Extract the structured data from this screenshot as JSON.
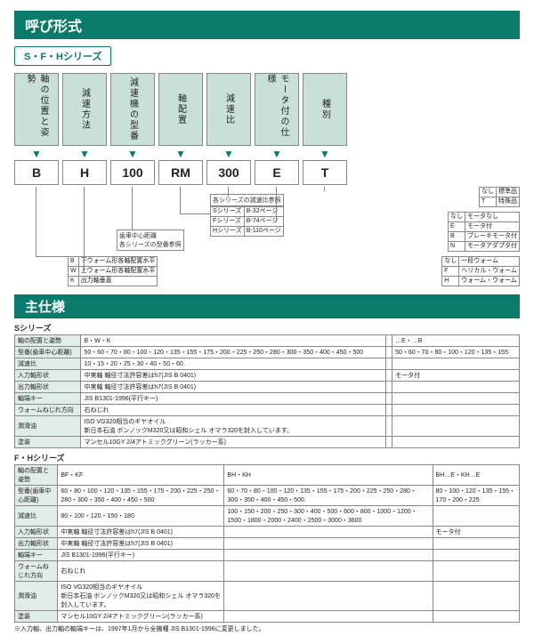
{
  "colors": {
    "accent": "#0a7a6a",
    "header_bg": "#c8e0d8",
    "border": "#888888",
    "page_bg": "#ffffff"
  },
  "title1": "呼び形式",
  "series_badge": "S・F・Hシリーズ",
  "columns": [
    {
      "header": "軸の位置と姿勢",
      "code": "B"
    },
    {
      "header": "減速方法",
      "code": "H"
    },
    {
      "header": "減速機の型番",
      "code": "100"
    },
    {
      "header": "軸配置",
      "code": "RM"
    },
    {
      "header": "減速比",
      "code": "300"
    },
    {
      "header": "モータ付の仕様",
      "code": "E"
    },
    {
      "header": "種別",
      "code": "T"
    }
  ],
  "legend_type": {
    "rows": [
      [
        "なし",
        "標準品"
      ],
      [
        "T",
        "特殊品"
      ]
    ]
  },
  "legend_motor": {
    "rows": [
      [
        "なし",
        "モータなし"
      ],
      [
        "E",
        "モータ付"
      ],
      [
        "B",
        "ブレーキモータ付"
      ],
      [
        "N",
        "モータアダプタ付"
      ]
    ]
  },
  "legend_worm": {
    "rows": [
      [
        "なし",
        "一段ウォーム"
      ],
      [
        "F",
        "ヘリカル・ウォーム"
      ],
      [
        "H",
        "ウォーム・ウォーム"
      ]
    ]
  },
  "legend_series": {
    "rows": [
      [
        "Sシリーズ",
        "B-32ページ"
      ],
      [
        "Fシリーズ",
        "B-74ページ"
      ],
      [
        "Hシリーズ",
        "B-110ページ"
      ]
    ]
  },
  "note_ratio": "各シリーズの減速比参照",
  "note_model": "歯車中心距離\n各シリーズの型番参照",
  "legend_pos": {
    "rows": [
      [
        "B",
        "下ウォーム形各軸配置水平"
      ],
      [
        "W",
        "上ウォーム形各軸配置水平"
      ],
      [
        "K",
        "出力軸垂直"
      ]
    ]
  },
  "title2": "主仕様",
  "s_label": "Sシリーズ",
  "s_table": {
    "rows": [
      [
        "軸の配置と姿勢",
        "B・W・K",
        "",
        "…E・…B"
      ],
      [
        "型番(歯車中心距離)",
        "50・60・70・80・100・120・135・155・175・200・225・250・280・300・350・400・450・500",
        "",
        "50・60・70・80・100・120・135・155"
      ],
      [
        "減速比",
        "10・15・20・25・30・40・50・60",
        "",
        ""
      ],
      [
        "入力軸形状",
        "中実軸 軸径寸法許容差はh7(JIS B 0401)",
        "",
        "モータ付"
      ],
      [
        "出力軸形状",
        "中実軸 軸径寸法許容差はh7(JIS B 0401)",
        "",
        ""
      ],
      [
        "軸端キー",
        "JIS B1301-1996(平行キー)",
        "",
        ""
      ],
      [
        "ウォームねじれ方向",
        "右ねじれ",
        "",
        ""
      ],
      [
        "潤滑油",
        "ISO VG320相当のギヤオイル\n新日本石油 ボンノックM320又は昭和シェル オマラ320を封入しています。",
        "",
        ""
      ],
      [
        "塗装",
        "マンセル10GY 2/4アトミックグリーン(ラッカー系)",
        "",
        ""
      ]
    ]
  },
  "fh_label": "F・Hシリーズ",
  "fh_table": {
    "rows": [
      [
        "軸の配置と姿勢",
        "BF・KF",
        "BH・KH",
        "BH…E・KH…E"
      ],
      [
        "型番(歯車中心距離)",
        "60・80・100・120・135・155・175・200・225・250・280・300・350・400・450・500",
        "60・70・80・100・120・135・155・175・200・225・250・280・300・350・400・450・500",
        "80・100・120・135・155・170・200・225"
      ],
      [
        "減速比",
        "80・100・120・150・180",
        "100・150・200・250・300・400・500・600・800・1000・1200・1500・1800・2000・2400・2500・3000・3600",
        ""
      ],
      [
        "入力軸形状",
        "中実軸 軸径寸法許容差はh7(JIS B 0401)",
        "",
        "モータ付"
      ],
      [
        "出力軸形状",
        "中実軸 軸径寸法許容差はh7(JIS B 0401)",
        "",
        ""
      ],
      [
        "軸端キー",
        "JIS B1301-1996(平行キー)",
        "",
        ""
      ],
      [
        "ウォームねじれ方向",
        "右ねじれ",
        "",
        ""
      ],
      [
        "潤滑油",
        "ISO VG320相当のギヤオイル\n新日本石油 ボンノックM320又は昭和シェル オマラ320を封入しています。",
        "",
        ""
      ],
      [
        "塗装",
        "マンセル10GY 2/4アトミックグリーン(ラッカー系)",
        "",
        ""
      ]
    ]
  },
  "footnote": "※入力軸、出力軸の軸端キーは、1997年1月から全機種 JIS B1301-1996に変更しました。"
}
